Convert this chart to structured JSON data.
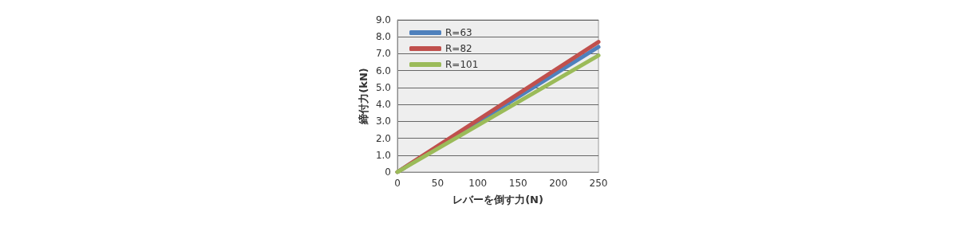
{
  "chart_data": {
    "type": "line",
    "xlabel": "レバーを倒す力(N)",
    "ylabel": "締付力(kN)",
    "x": [
      0,
      250
    ],
    "series": [
      {
        "name": "R=63",
        "color": "#4f81bd",
        "values": [
          0,
          7.4
        ]
      },
      {
        "name": "R=82",
        "color": "#c0504d",
        "values": [
          0,
          7.7
        ]
      },
      {
        "name": "R=101",
        "color": "#9bbb59",
        "values": [
          0,
          6.9
        ]
      }
    ],
    "xlim": [
      0,
      250
    ],
    "xticks": [
      0,
      50,
      100,
      150,
      200,
      250
    ],
    "ylim": [
      0,
      9
    ],
    "yticks": [
      0,
      {
        "value": 1,
        "label": "1.0"
      },
      {
        "value": 2,
        "label": "2.0"
      },
      {
        "value": 3,
        "label": "3.0"
      },
      {
        "value": 4,
        "label": "4.0"
      },
      {
        "value": 5,
        "label": "5.0"
      },
      {
        "value": 6,
        "label": "6.0"
      },
      {
        "value": 7,
        "label": "7.0"
      },
      {
        "value": 8,
        "label": "8.0"
      },
      {
        "value": 9,
        "label": "9.0"
      }
    ],
    "grid": "y",
    "legend": "top left",
    "marker": "none",
    "line_style": "solid"
  }
}
